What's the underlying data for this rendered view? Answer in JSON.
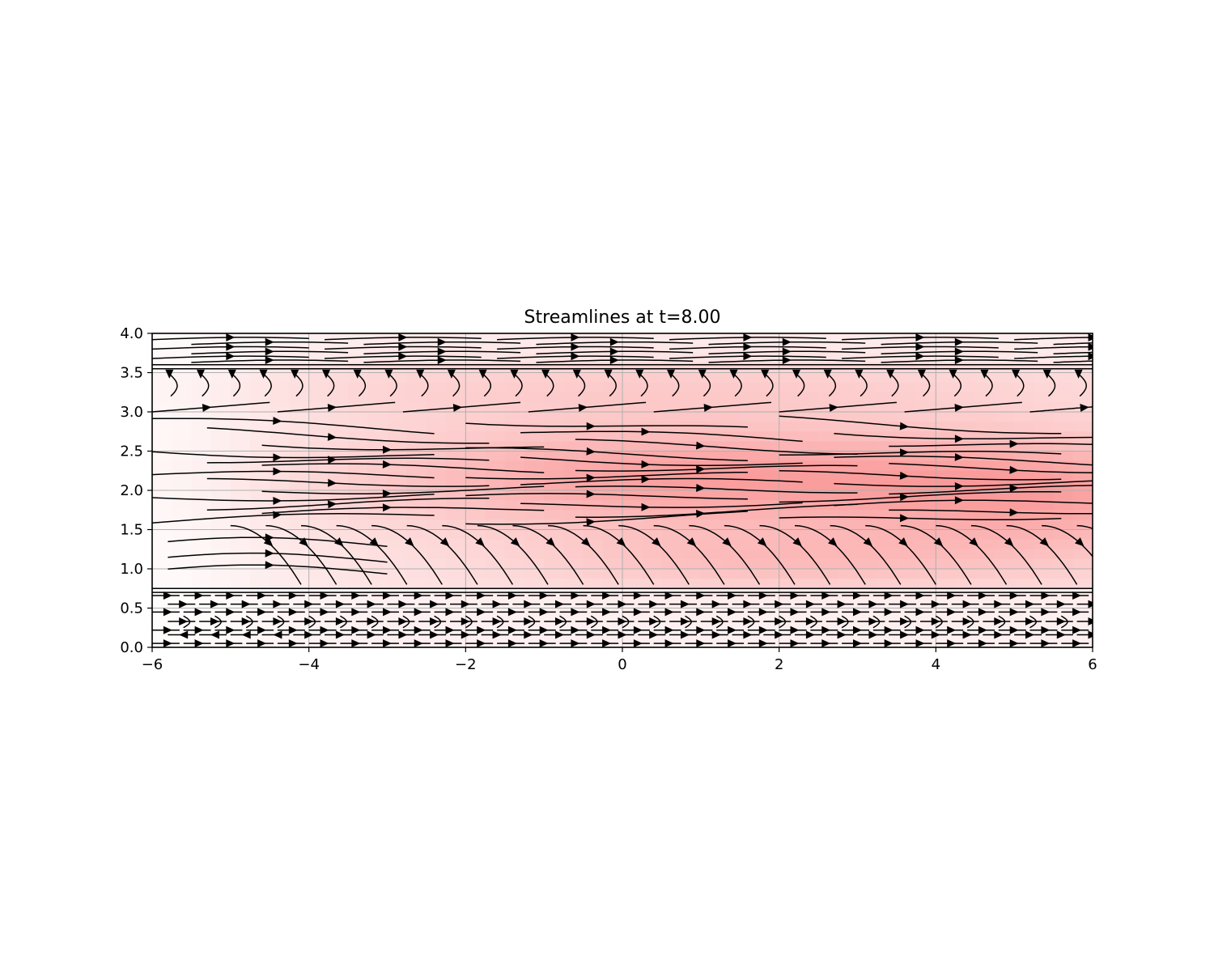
{
  "chart_data": {
    "type": "streamplot",
    "title": "Streamlines at t=8.00",
    "xlabel": "",
    "ylabel": "",
    "xlim": [
      -6,
      6
    ],
    "ylim": [
      0,
      4
    ],
    "xticks": [
      -6,
      -4,
      -2,
      0,
      2,
      4,
      6
    ],
    "xtick_labels": [
      "−6",
      "−4",
      "−2",
      "0",
      "2",
      "4",
      "6"
    ],
    "yticks": [
      0.0,
      0.5,
      1.0,
      1.5,
      2.0,
      2.5,
      3.0,
      3.5,
      4.0
    ],
    "ytick_labels": [
      "0.0",
      "0.5",
      "1.0",
      "1.5",
      "2.0",
      "2.5",
      "3.0",
      "3.5",
      "4.0"
    ],
    "grid": true,
    "background": {
      "colormap": "white-to-red",
      "peak_color": "#f98a8a",
      "peak_location": [
        1.0,
        2.2
      ],
      "note": "speed magnitude shading"
    },
    "streamline_color": "#000000",
    "bands": [
      {
        "y_range": [
          3.6,
          4.0
        ],
        "flow": "rightward, fine horizontal streamlines"
      },
      {
        "y_range": [
          3.0,
          3.6
        ],
        "flow": "short curls bending down then right"
      },
      {
        "y_range": [
          1.6,
          3.0
        ],
        "flow": "rightward, converging toward y≈2.1"
      },
      {
        "y_range": [
          0.8,
          1.6
        ],
        "flow": "rightward, descending toward y≈0.8"
      },
      {
        "y_range": [
          0.0,
          0.75
        ],
        "flow": "fine horizontal streamlines, mostly rightward"
      }
    ]
  }
}
